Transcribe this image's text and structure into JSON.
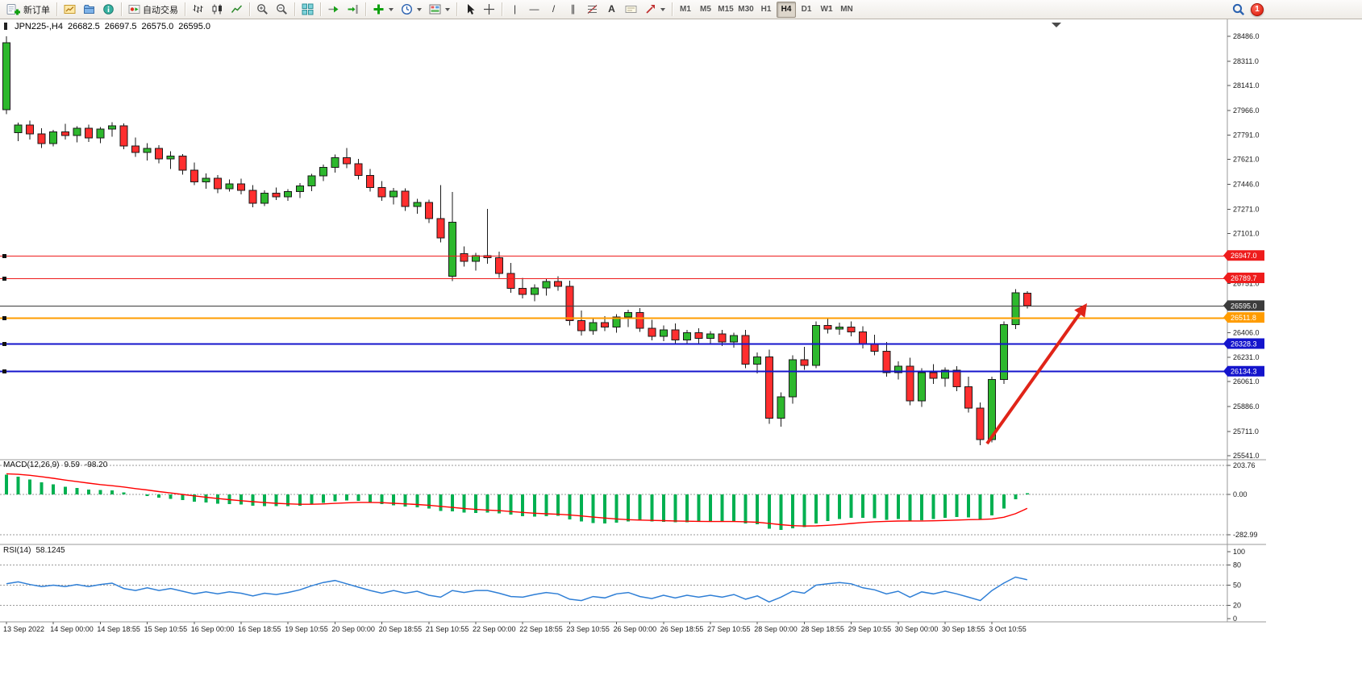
{
  "toolbar": {
    "new_order_label": "新订单",
    "autotrading_label": "自动交易",
    "timeframes": [
      "M1",
      "M5",
      "M15",
      "M30",
      "H1",
      "H4",
      "D1",
      "W1",
      "MN"
    ],
    "active_timeframe": "H4",
    "notification_count": "1",
    "tool_glyphs": {
      "vline": "|",
      "hline": "—",
      "trendline": "/",
      "channel": "∥",
      "text": "A"
    }
  },
  "chart": {
    "header": {
      "symbol_period": "JPN225-,H4",
      "open": "26682.5",
      "high": "26697.5",
      "low": "26575.0",
      "close": "26595.0"
    },
    "price_axis": {
      "ticks": [
        "28486.0",
        "28311.0",
        "28141.0",
        "27966.0",
        "27791.0",
        "27621.0",
        "27446.0",
        "27271.0",
        "27101.0",
        "26926.0",
        "26751.0",
        "26581.0",
        "26406.0",
        "26231.0",
        "26061.0",
        "25886.0",
        "25711.0",
        "25541.0"
      ]
    },
    "hlines": [
      {
        "price": 26947.0,
        "label": "26947.0",
        "color": "#ee1c1c",
        "type": "resistance"
      },
      {
        "price": 26789.7,
        "label": "26789.7",
        "color": "#ee1c1c",
        "type": "resistance2"
      },
      {
        "price": 26595.0,
        "label": "26595.0",
        "color": "#3c3c3c",
        "type": "current-price"
      },
      {
        "price": 26511.8,
        "label": "26511.8",
        "color": "#ff9c00",
        "type": "level"
      },
      {
        "price": 26328.3,
        "label": "26328.3",
        "color": "#1414cc",
        "type": "support"
      },
      {
        "price": 26134.3,
        "label": "26134.3",
        "color": "#1414cc",
        "type": "support2"
      }
    ],
    "time_axis": [
      "13 Sep 2022",
      "14 Sep 00:00",
      "14 Sep 18:55",
      "15 Sep 10:55",
      "16 Sep 00:00",
      "16 Sep 18:55",
      "19 Sep 10:55",
      "20 Sep 00:00",
      "20 Sep 18:55",
      "21 Sep 10:55",
      "22 Sep 00:00",
      "22 Sep 18:55",
      "23 Sep 10:55",
      "26 Sep 00:00",
      "26 Sep 18:55",
      "27 Sep 10:55",
      "28 Sep 00:00",
      "28 Sep 18:55",
      "29 Sep 10:55",
      "30 Sep 00:00",
      "30 Sep 18:55",
      "3 Oct 10:55"
    ]
  },
  "indicators": {
    "macd": {
      "label": "MACD(12,26,9)",
      "value_main": "9.59",
      "value_signal": "-98.20",
      "axis_ticks": [
        "203.76",
        "0.00",
        "-282.99"
      ],
      "axis_values": [
        203.76,
        0,
        -282.99
      ]
    },
    "rsi": {
      "label": "RSI(14)",
      "value": "58.1245",
      "axis_ticks": [
        "100",
        "80",
        "50",
        "20",
        "0"
      ],
      "axis_values": [
        100,
        80,
        50,
        20,
        0
      ],
      "levels": [
        80,
        50,
        20
      ]
    }
  },
  "chart_data": [
    {
      "type": "candlestick",
      "name": "JPN225- H4",
      "up_color": "#2db82d",
      "down_color": "#ff2e2e",
      "ylim": [
        25541,
        28486
      ],
      "ohlc": [
        [
          27970,
          28485,
          27940,
          28440
        ],
        [
          27810,
          27880,
          27750,
          27862
        ],
        [
          27862,
          27895,
          27760,
          27800
        ],
        [
          27800,
          27840,
          27702,
          27732
        ],
        [
          27732,
          27830,
          27712,
          27815
        ],
        [
          27815,
          27872,
          27760,
          27790
        ],
        [
          27790,
          27855,
          27742,
          27840
        ],
        [
          27840,
          27865,
          27745,
          27772
        ],
        [
          27772,
          27850,
          27735,
          27835
        ],
        [
          27835,
          27882,
          27782,
          27858
        ],
        [
          27858,
          27875,
          27692,
          27715
        ],
        [
          27715,
          27775,
          27640,
          27670
        ],
        [
          27670,
          27735,
          27615,
          27700
        ],
        [
          27700,
          27722,
          27595,
          27625
        ],
        [
          27625,
          27680,
          27555,
          27645
        ],
        [
          27645,
          27658,
          27515,
          27545
        ],
        [
          27545,
          27600,
          27440,
          27465
        ],
        [
          27465,
          27522,
          27415,
          27490
        ],
        [
          27490,
          27512,
          27385,
          27415
        ],
        [
          27415,
          27480,
          27395,
          27450
        ],
        [
          27450,
          27485,
          27375,
          27405
        ],
        [
          27405,
          27440,
          27285,
          27315
        ],
        [
          27315,
          27405,
          27295,
          27385
        ],
        [
          27385,
          27425,
          27335,
          27360
        ],
        [
          27360,
          27412,
          27330,
          27395
        ],
        [
          27395,
          27455,
          27350,
          27435
        ],
        [
          27435,
          27520,
          27400,
          27505
        ],
        [
          27505,
          27585,
          27470,
          27565
        ],
        [
          27565,
          27655,
          27530,
          27635
        ],
        [
          27635,
          27702,
          27560,
          27590
        ],
        [
          27590,
          27625,
          27480,
          27510
        ],
        [
          27510,
          27555,
          27395,
          27425
        ],
        [
          27425,
          27470,
          27330,
          27360
        ],
        [
          27360,
          27420,
          27305,
          27400
        ],
        [
          27400,
          27418,
          27260,
          27290
        ],
        [
          27290,
          27345,
          27240,
          27320
        ],
        [
          27320,
          27340,
          27175,
          27205
        ],
        [
          27205,
          27442,
          27038,
          27070
        ],
        [
          26800,
          27392,
          26768,
          27180
        ],
        [
          26960,
          27012,
          26870,
          26905
        ],
        [
          26905,
          26965,
          26840,
          26945
        ],
        [
          26945,
          27275,
          26890,
          26930
        ],
        [
          26930,
          26975,
          26790,
          26820
        ],
        [
          26820,
          26895,
          26685,
          26715
        ],
        [
          26715,
          26790,
          26645,
          26675
        ],
        [
          26675,
          26745,
          26625,
          26720
        ],
        [
          26720,
          26785,
          26665,
          26765
        ],
        [
          26765,
          26802,
          26700,
          26730
        ],
        [
          26730,
          26770,
          26455,
          26490
        ],
        [
          26490,
          26560,
          26385,
          26420
        ],
        [
          26420,
          26505,
          26390,
          26475
        ],
        [
          26475,
          26520,
          26415,
          26445
        ],
        [
          26445,
          26535,
          26405,
          26515
        ],
        [
          26515,
          26565,
          26445,
          26545
        ],
        [
          26545,
          26578,
          26410,
          26435
        ],
        [
          26435,
          26495,
          26350,
          26380
        ],
        [
          26380,
          26455,
          26345,
          26425
        ],
        [
          26425,
          26470,
          26330,
          26355
        ],
        [
          26355,
          26425,
          26325,
          26405
        ],
        [
          26405,
          26435,
          26330,
          26365
        ],
        [
          26365,
          26415,
          26320,
          26395
        ],
        [
          26395,
          26425,
          26310,
          26340
        ],
        [
          26340,
          26405,
          26300,
          26385
        ],
        [
          26385,
          26425,
          26155,
          26185
        ],
        [
          26185,
          26265,
          26120,
          26235
        ],
        [
          26235,
          26285,
          25765,
          25805
        ],
        [
          25805,
          25985,
          25745,
          25955
        ],
        [
          25955,
          26245,
          25905,
          26215
        ],
        [
          26215,
          26305,
          26145,
          26175
        ],
        [
          26175,
          26485,
          26155,
          26455
        ],
        [
          26455,
          26512,
          26400,
          26430
        ],
        [
          26430,
          26475,
          26390,
          26445
        ],
        [
          26445,
          26485,
          26380,
          26410
        ],
        [
          26410,
          26450,
          26295,
          26325
        ],
        [
          26325,
          26390,
          26245,
          26275
        ],
        [
          26275,
          26340,
          26095,
          26125
        ],
        [
          26125,
          26205,
          26075,
          26170
        ],
        [
          26170,
          26230,
          25895,
          25925
        ],
        [
          25925,
          26155,
          25885,
          26125
        ],
        [
          26125,
          26185,
          26045,
          26085
        ],
        [
          26085,
          26160,
          26025,
          26140
        ],
        [
          26140,
          26170,
          25995,
          26025
        ],
        [
          26025,
          26095,
          25845,
          25875
        ],
        [
          25875,
          25915,
          25615,
          25655
        ],
        [
          25655,
          26095,
          25635,
          26075
        ],
        [
          26075,
          26485,
          26045,
          26460
        ],
        [
          26460,
          26710,
          26430,
          26685
        ],
        [
          26682.5,
          26697.5,
          26575.0,
          26595.0
        ]
      ]
    },
    {
      "type": "bar",
      "name": "MACD histogram (12,26,9)",
      "color": "#00b050",
      "ylim": [
        -282.99,
        203.76
      ],
      "values": [
        140,
        125,
        105,
        85,
        70,
        55,
        45,
        35,
        30,
        28,
        15,
        0,
        -10,
        -22,
        -30,
        -40,
        -52,
        -58,
        -65,
        -68,
        -72,
        -80,
        -82,
        -83,
        -82,
        -78,
        -70,
        -60,
        -48,
        -42,
        -45,
        -55,
        -68,
        -75,
        -85,
        -90,
        -98,
        -115,
        -120,
        -128,
        -130,
        -128,
        -132,
        -142,
        -152,
        -155,
        -152,
        -150,
        -175,
        -190,
        -200,
        -205,
        -198,
        -190,
        -185,
        -190,
        -192,
        -196,
        -195,
        -192,
        -190,
        -192,
        -190,
        -205,
        -210,
        -240,
        -250,
        -238,
        -228,
        -205,
        -188,
        -172,
        -163,
        -163,
        -168,
        -178,
        -173,
        -185,
        -180,
        -172,
        -163,
        -158,
        -162,
        -172,
        -148,
        -98,
        -35,
        9.59
      ]
    },
    {
      "type": "line",
      "name": "MACD signal",
      "color": "#ff0000",
      "values": [
        145,
        141,
        134,
        124,
        113,
        101,
        90,
        79,
        69,
        61,
        52,
        41,
        31,
        20,
        10,
        0,
        -10,
        -20,
        -29,
        -37,
        -44,
        -51,
        -57,
        -62,
        -66,
        -69,
        -69,
        -67,
        -63,
        -59,
        -56,
        -56,
        -58,
        -62,
        -66,
        -71,
        -76,
        -84,
        -91,
        -99,
        -105,
        -110,
        -114,
        -120,
        -126,
        -132,
        -136,
        -139,
        -144,
        -151,
        -159,
        -166,
        -172,
        -177,
        -180,
        -182,
        -184,
        -186,
        -188,
        -189,
        -190,
        -190,
        -190,
        -192,
        -195,
        -203,
        -212,
        -219,
        -222,
        -221,
        -217,
        -211,
        -204,
        -197,
        -192,
        -189,
        -187,
        -186,
        -186,
        -185,
        -183,
        -180,
        -177,
        -176,
        -172,
        -160,
        -135,
        -98.2
      ]
    },
    {
      "type": "line",
      "name": "RSI(14)",
      "color": "#2f7fd6",
      "ylim": [
        0,
        100
      ],
      "values": [
        52,
        55,
        51,
        48,
        50,
        48,
        51,
        48,
        51,
        53,
        45,
        42,
        46,
        42,
        45,
        41,
        37,
        40,
        37,
        40,
        38,
        34,
        38,
        36,
        39,
        43,
        49,
        54,
        57,
        52,
        47,
        42,
        38,
        42,
        38,
        41,
        35,
        32,
        42,
        39,
        42,
        42,
        38,
        33,
        32,
        36,
        39,
        37,
        29,
        27,
        33,
        31,
        37,
        39,
        33,
        30,
        35,
        31,
        35,
        32,
        35,
        32,
        36,
        29,
        34,
        25,
        32,
        41,
        38,
        50,
        52,
        54,
        52,
        46,
        43,
        37,
        41,
        32,
        40,
        37,
        41,
        37,
        32,
        27,
        42,
        53,
        62,
        58.12
      ]
    },
    {
      "type": "annotation",
      "name": "up-trend-arrow",
      "color": "#e02418"
    }
  ]
}
